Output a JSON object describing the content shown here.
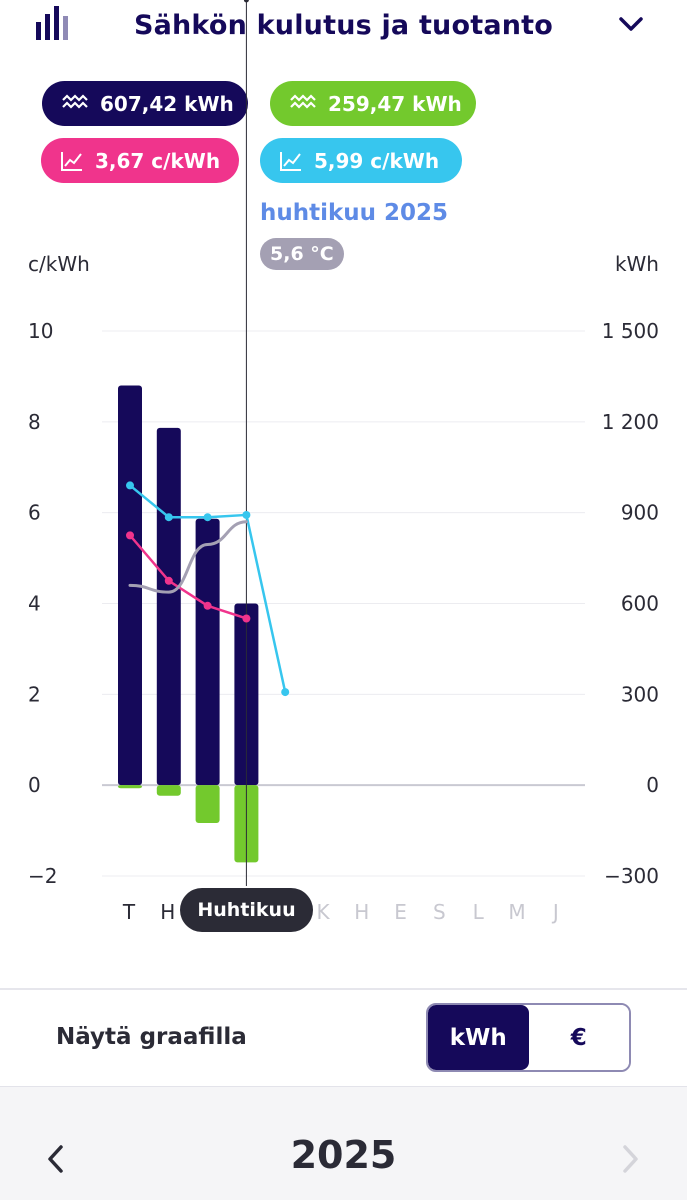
{
  "header": {
    "title": "Sähkön kulutus ja tuotanto",
    "logo_icon": "bar-chart-icon",
    "toggle_icon": "chevron-down-icon"
  },
  "summary": {
    "consumption": {
      "label": "607,42 kWh",
      "icon": "electricity-icon",
      "color": "#15095a"
    },
    "production": {
      "label": "259,47 kWh",
      "icon": "electricity-icon",
      "color": "#73c92d"
    },
    "price_avg": {
      "label": "3,67 c/kWh",
      "icon": "line-chart-icon",
      "color": "#f0348c"
    },
    "price_spot": {
      "label": "5,99 c/kWh",
      "icon": "line-chart-icon",
      "color": "#37c6ee"
    }
  },
  "tooltip": {
    "title": "huhtikuu 2025",
    "temperature": "5,6 °C",
    "month_label": "Huhtikuu"
  },
  "chart_data": {
    "type": "bar",
    "categories": [
      "T",
      "H",
      "M",
      "H",
      "T",
      "K",
      "H",
      "E",
      "S",
      "L",
      "M",
      "J"
    ],
    "left_axis": {
      "label": "c/kWh",
      "ylim": [
        -2,
        10
      ],
      "ticks": [
        "−2",
        "0",
        "2",
        "4",
        "6",
        "8",
        "10"
      ],
      "tick_values": [
        -2,
        0,
        2,
        4,
        6,
        8,
        10
      ]
    },
    "right_axis": {
      "label": "kWh",
      "ylim": [
        -300,
        1500
      ],
      "ticks": [
        "−300",
        "0",
        "300",
        "600",
        "900",
        "1 200",
        "1 500"
      ],
      "tick_values": [
        -300,
        0,
        300,
        600,
        900,
        1200,
        1500
      ]
    },
    "series": [
      {
        "kind": "bar",
        "axis": "right",
        "color": "#15095a",
        "values": [
          1320,
          1180,
          880,
          600,
          null,
          null,
          null,
          null,
          null,
          null,
          null,
          null
        ]
      },
      {
        "kind": "bar",
        "axis": "right",
        "color": "#73c92d",
        "values": [
          -10,
          -35,
          -125,
          -255,
          null,
          null,
          null,
          null,
          null,
          null,
          null,
          null
        ]
      },
      {
        "kind": "line",
        "axis": "left",
        "color": "#37c6ee",
        "values": [
          6.6,
          5.9,
          5.9,
          5.95,
          2.05,
          null,
          null,
          null,
          null,
          null,
          null,
          null
        ]
      },
      {
        "kind": "line",
        "axis": "left",
        "color": "#f0348c",
        "values": [
          5.5,
          4.5,
          3.95,
          3.67,
          null,
          null,
          null,
          null,
          null,
          null,
          null,
          null
        ]
      },
      {
        "kind": "curve",
        "axis": "left",
        "color": "#a4a0b3",
        "values": [
          4.4,
          4.25,
          5.3,
          5.8,
          null,
          null,
          null,
          null,
          null,
          null,
          null,
          null
        ]
      }
    ],
    "selected_index": 3,
    "active_label_color": "#2b2b36",
    "inactive_label_color": "#c8c8d0",
    "grid": true
  },
  "controls": {
    "show_label": "Näytä graafilla",
    "unit_options": [
      "kWh",
      "€"
    ],
    "selected_unit": "kWh"
  },
  "footer": {
    "year": "2025",
    "prev_icon": "chevron-left-icon",
    "next_icon": "chevron-right-icon"
  }
}
